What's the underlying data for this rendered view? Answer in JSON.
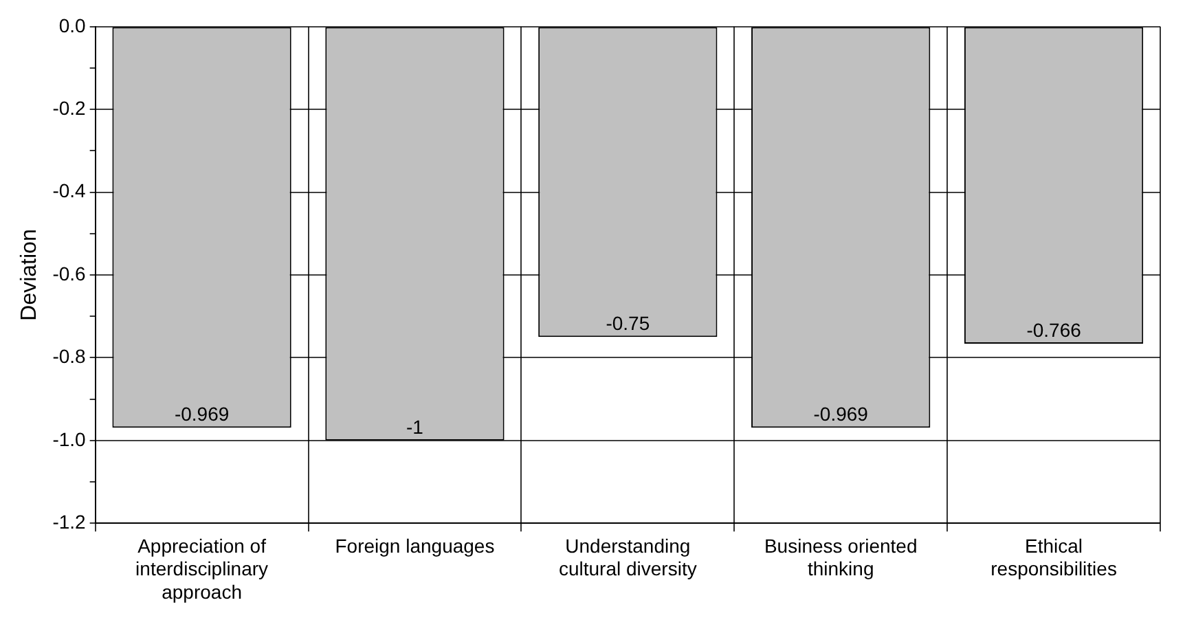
{
  "chart_data": {
    "type": "bar",
    "ylabel": "Deviation",
    "categories": [
      "Appreciation of interdisciplinary approach",
      "Foreign languages",
      "Understanding cultural diversity",
      "Business oriented thinking",
      "Ethical responsibilities"
    ],
    "values": [
      -0.969,
      -1,
      -0.75,
      -0.969,
      -0.766
    ],
    "color": "#c0c0c0",
    "data_labels": true,
    "grid": true,
    "legend": false,
    "ylim": [
      -1.2,
      0
    ],
    "yticks": [
      {
        "value": -1.2,
        "label": "-1.2"
      },
      {
        "value": -1.1,
        "label": null
      },
      {
        "value": -1,
        "label": "-1.0"
      },
      {
        "value": -0.9,
        "label": null
      },
      {
        "value": -0.8,
        "label": "-0.8"
      },
      {
        "value": -0.7,
        "label": null
      },
      {
        "value": -0.6,
        "label": "-0.6"
      },
      {
        "value": -0.5,
        "label": null
      },
      {
        "value": -0.4,
        "label": "-0.4"
      },
      {
        "value": -0.3,
        "label": null
      },
      {
        "value": -0.2,
        "label": "-0.2"
      },
      {
        "value": -0.1,
        "label": null
      },
      {
        "value": 0,
        "label": "0.0"
      }
    ]
  }
}
